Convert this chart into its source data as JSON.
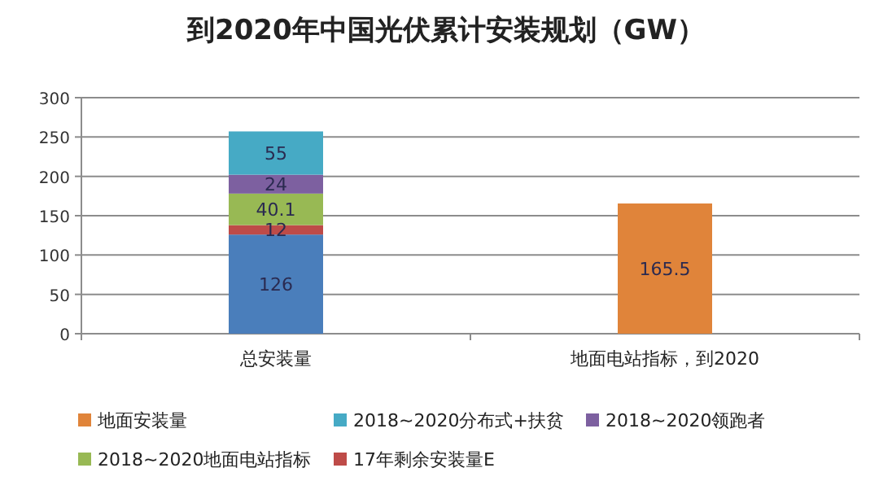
{
  "chart_data": {
    "type": "bar",
    "title": "到2020年中国光伏累计安装规划（GW）",
    "categories": [
      "总安装量",
      "地面电站指标，到2020"
    ],
    "stacked": true,
    "data_labels": true,
    "grid": "y",
    "legend": "bottom",
    "ylim": [
      0,
      300
    ],
    "yticks": [
      0,
      50,
      100,
      150,
      200,
      250,
      300
    ],
    "series": [
      {
        "color": "#4a7ebb",
        "values": [
          126,
          null
        ]
      },
      {
        "name": "17年剩余安装量E",
        "color": "#be4b48",
        "values": [
          12,
          null
        ]
      },
      {
        "name": "2018~2020地面电站指标",
        "color": "#98b954",
        "values": [
          40.1,
          null
        ]
      },
      {
        "name": "2018~2020领跑者",
        "color": "#7d60a0",
        "values": [
          24,
          null
        ]
      },
      {
        "name": "2018~2020分布式+扶贫",
        "color": "#46aac5",
        "values": [
          55,
          null
        ]
      },
      {
        "name": "地面安装量",
        "color": "#e0843a",
        "values": [
          null,
          165.5
        ]
      }
    ]
  }
}
